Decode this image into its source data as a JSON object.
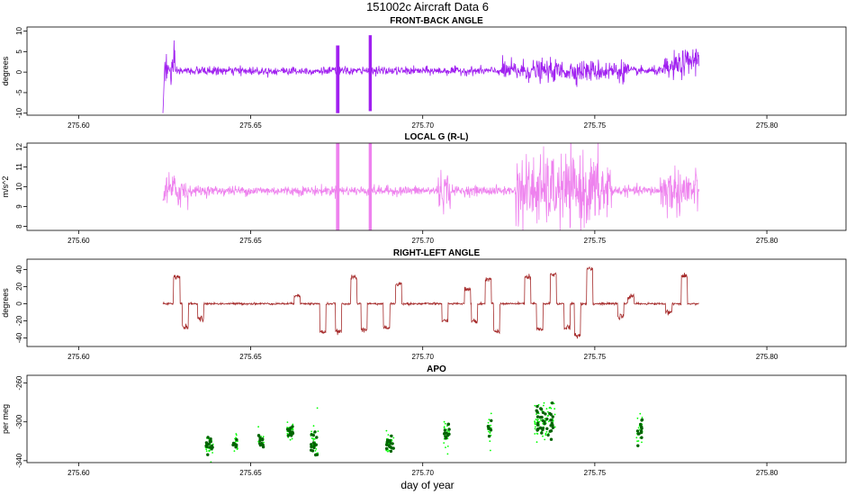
{
  "title": "151002c   Aircraft Data 6",
  "xlabel": "day of year",
  "chart_data": [
    {
      "type": "line",
      "title": "FRONT-BACK ANGLE",
      "ylabel": "degrees",
      "color": "#a020f0",
      "xlim": [
        275.585,
        275.823
      ],
      "ylim": [
        -10.5,
        11
      ],
      "xticks": [
        275.6,
        275.65,
        275.7,
        275.75,
        275.8
      ],
      "xtick_labels": [
        "275.60",
        "275.65",
        "275.70",
        "275.75",
        "275.80"
      ],
      "yticks": [
        -10,
        -5,
        0,
        5,
        10
      ],
      "ytick_labels": [
        "-10",
        "-5",
        "0",
        "5",
        "10"
      ],
      "x_range": [
        275.6245,
        275.7803
      ],
      "baseline": 0.3,
      "annotations_bursts": [
        {
          "x_start": 275.6748,
          "x_end": 275.6758,
          "y_min": -10,
          "y_max": 6.5
        },
        {
          "x_start": 275.6843,
          "x_end": 275.6852,
          "y_min": -9.5,
          "y_max": 9
        }
      ],
      "grid": false,
      "legend": "none"
    },
    {
      "type": "line",
      "title": "LOCAL G (R-L)",
      "ylabel": "m/s^2",
      "color": "#ee82ee",
      "xlim": [
        275.585,
        275.823
      ],
      "ylim": [
        7.8,
        12.2
      ],
      "xticks": [
        275.6,
        275.65,
        275.7,
        275.75,
        275.8
      ],
      "xtick_labels": [
        "275.60",
        "275.65",
        "275.70",
        "275.75",
        "275.80"
      ],
      "yticks": [
        8,
        9,
        10,
        11,
        12
      ],
      "ytick_labels": [
        "8",
        "9",
        "10",
        "11",
        "12"
      ],
      "x_range": [
        275.6245,
        275.7803
      ],
      "baseline": 9.8,
      "annotations_bursts": [
        {
          "x_start": 275.6748,
          "x_end": 275.6758,
          "y_min": 7.8,
          "y_max": 12.2
        },
        {
          "x_start": 275.6843,
          "x_end": 275.6852,
          "y_min": 7.8,
          "y_max": 12.2
        }
      ],
      "grid": false,
      "legend": "none"
    },
    {
      "type": "line",
      "title": "RIGHT-LEFT ANGLE",
      "ylabel": "degrees",
      "color": "#a52a2a",
      "xlim": [
        275.585,
        275.823
      ],
      "ylim": [
        -50,
        52
      ],
      "xticks": [
        275.6,
        275.65,
        275.7,
        275.75,
        275.8
      ],
      "xtick_labels": [
        "275.60",
        "275.65",
        "275.70",
        "275.75",
        "275.80"
      ],
      "yticks": [
        -40,
        -20,
        0,
        20,
        40
      ],
      "ytick_labels": [
        "-40",
        "-20",
        "0",
        "20",
        "40"
      ],
      "x_range": [
        275.6245,
        275.7803
      ],
      "baseline": 0,
      "excursions": [
        {
          "x": 275.6285,
          "value": 31
        },
        {
          "x": 275.631,
          "value": -27
        },
        {
          "x": 275.6355,
          "value": -18
        },
        {
          "x": 275.6635,
          "value": 10
        },
        {
          "x": 275.671,
          "value": -33
        },
        {
          "x": 275.6755,
          "value": -33
        },
        {
          "x": 275.68,
          "value": 30
        },
        {
          "x": 275.683,
          "value": -30
        },
        {
          "x": 275.6895,
          "value": -28
        },
        {
          "x": 275.693,
          "value": 23
        },
        {
          "x": 275.7065,
          "value": -20
        },
        {
          "x": 275.713,
          "value": 17
        },
        {
          "x": 275.715,
          "value": -20
        },
        {
          "x": 275.719,
          "value": 29
        },
        {
          "x": 275.7215,
          "value": -32
        },
        {
          "x": 275.7305,
          "value": 31
        },
        {
          "x": 275.734,
          "value": -30
        },
        {
          "x": 275.738,
          "value": 34
        },
        {
          "x": 275.742,
          "value": -28
        },
        {
          "x": 275.745,
          "value": -37
        },
        {
          "x": 275.7485,
          "value": 41
        },
        {
          "x": 275.7575,
          "value": -15
        },
        {
          "x": 275.7605,
          "value": 8
        },
        {
          "x": 275.7715,
          "value": -10
        },
        {
          "x": 275.776,
          "value": 32
        }
      ],
      "grid": false,
      "legend": "none"
    },
    {
      "type": "scatter",
      "title": "APO",
      "ylabel": "per meg",
      "color_dark": "#006400",
      "color_light": "#00ff00",
      "xlim": [
        275.585,
        275.823
      ],
      "ylim": [
        -342,
        -252
      ],
      "xticks": [
        275.6,
        275.65,
        275.7,
        275.75,
        275.8
      ],
      "xtick_labels": [
        "275.60",
        "275.65",
        "275.70",
        "275.75",
        "275.80"
      ],
      "yticks": [
        -340,
        -300,
        -260
      ],
      "ytick_labels": [
        "-340",
        "-300",
        "-260"
      ],
      "clusters": [
        {
          "x_center": 275.638,
          "x_width": 0.0022,
          "y_center": -324,
          "y_spread": 6
        },
        {
          "x_center": 275.6455,
          "x_width": 0.0014,
          "y_center": -322,
          "y_spread": 4
        },
        {
          "x_center": 275.653,
          "x_width": 0.0016,
          "y_center": -320,
          "y_spread": 6
        },
        {
          "x_center": 275.6615,
          "x_width": 0.0018,
          "y_center": -311,
          "y_spread": 5
        },
        {
          "x_center": 275.6685,
          "x_width": 0.0022,
          "y_center": -320,
          "y_spread": 8
        },
        {
          "x_center": 275.6905,
          "x_width": 0.0024,
          "y_center": -324,
          "y_spread": 6
        },
        {
          "x_center": 275.707,
          "x_width": 0.0018,
          "y_center": -311,
          "y_spread": 8
        },
        {
          "x_center": 275.7195,
          "x_width": 0.0012,
          "y_center": -307,
          "y_spread": 8
        },
        {
          "x_center": 275.7355,
          "x_width": 0.006,
          "y_center": -300,
          "y_spread": 10
        },
        {
          "x_center": 275.763,
          "x_width": 0.0018,
          "y_center": -310,
          "y_spread": 8
        }
      ],
      "grid": false,
      "legend": "none"
    }
  ]
}
